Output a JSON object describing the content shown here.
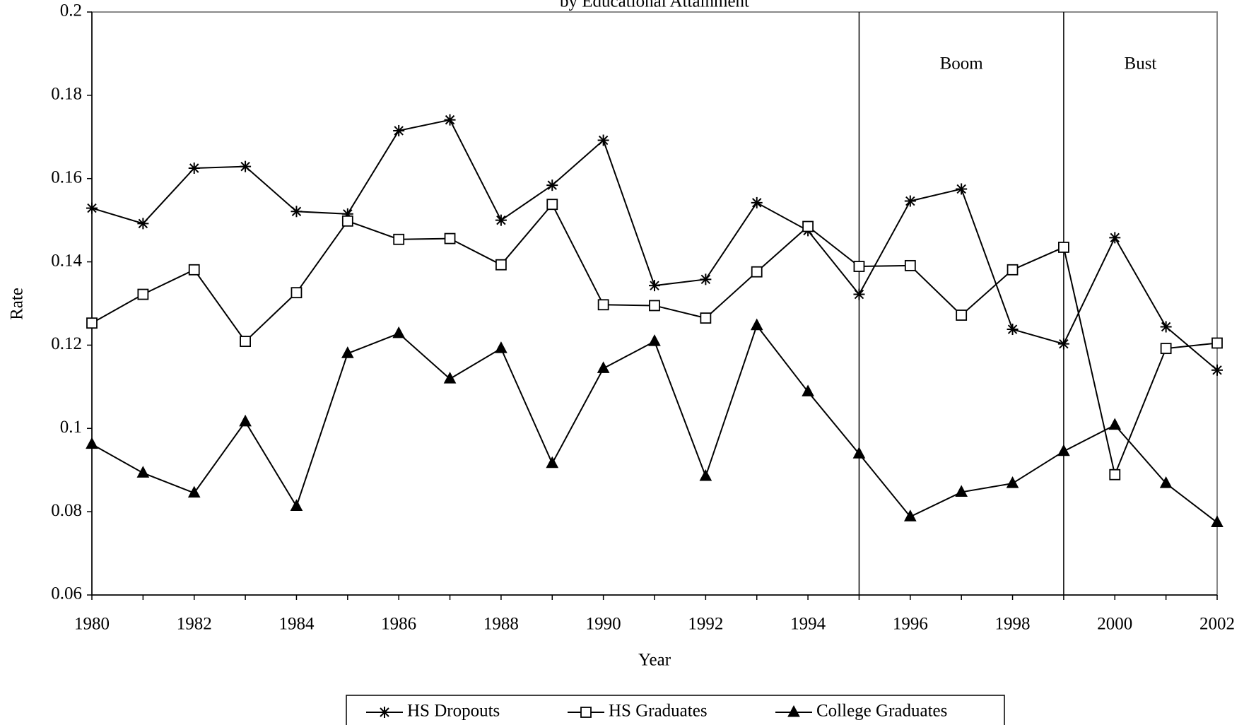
{
  "chart_data": {
    "type": "line",
    "title": "by Educational Attainment",
    "x_label": "Year",
    "y_label": "Rate",
    "x": [
      1980,
      1981,
      1982,
      1983,
      1984,
      1985,
      1986,
      1987,
      1988,
      1989,
      1990,
      1991,
      1992,
      1993,
      1994,
      1995,
      1996,
      1997,
      1998,
      1999,
      2000,
      2001,
      2002
    ],
    "xlim": [
      1980,
      2002
    ],
    "xticks": [
      1980,
      1982,
      1984,
      1986,
      1988,
      1990,
      1992,
      1994,
      1996,
      1998,
      2000,
      2002
    ],
    "ylim": [
      0.06,
      0.2
    ],
    "yticks": [
      0.06,
      0.08,
      0.1,
      0.12,
      0.14,
      0.16,
      0.18,
      0.2
    ],
    "grid": false,
    "legend": "bottom",
    "regions": [
      {
        "label": "Boom",
        "start": 1995,
        "end": 1999
      },
      {
        "label": "Bust",
        "start": 1999,
        "end": 2002
      }
    ],
    "series": [
      {
        "name": "HS Dropouts",
        "color": "#000000",
        "marker": "asterisk",
        "values": [
          0.1529,
          0.1492,
          0.1625,
          0.1629,
          0.1521,
          0.1515,
          0.1715,
          0.1741,
          0.15,
          0.1584,
          0.1692,
          0.1343,
          0.1358,
          0.1542,
          0.1475,
          0.1322,
          0.1546,
          0.1575,
          0.1238,
          0.1203,
          0.1458,
          0.1244,
          0.114
        ]
      },
      {
        "name": "HS Graduates",
        "color": "#000000",
        "marker": "square",
        "values": [
          0.1253,
          0.1322,
          0.1381,
          0.1209,
          0.1326,
          0.1498,
          0.1454,
          0.1456,
          0.1393,
          0.1538,
          0.1297,
          0.1295,
          0.1265,
          0.1376,
          0.1485,
          0.1389,
          0.1391,
          0.1272,
          0.1381,
          0.1435,
          0.0889,
          0.1192,
          0.1205
        ]
      },
      {
        "name": "College Graduates",
        "color": "#000000",
        "marker": "triangle",
        "values": [
          0.0962,
          0.0893,
          0.0845,
          0.1016,
          0.0813,
          0.118,
          0.1228,
          0.1119,
          0.1192,
          0.0916,
          0.1144,
          0.1209,
          0.0885,
          0.1247,
          0.1088,
          0.0939,
          0.0788,
          0.0847,
          0.0868,
          0.0945,
          0.1008,
          0.0868,
          0.0774
        ]
      }
    ]
  }
}
